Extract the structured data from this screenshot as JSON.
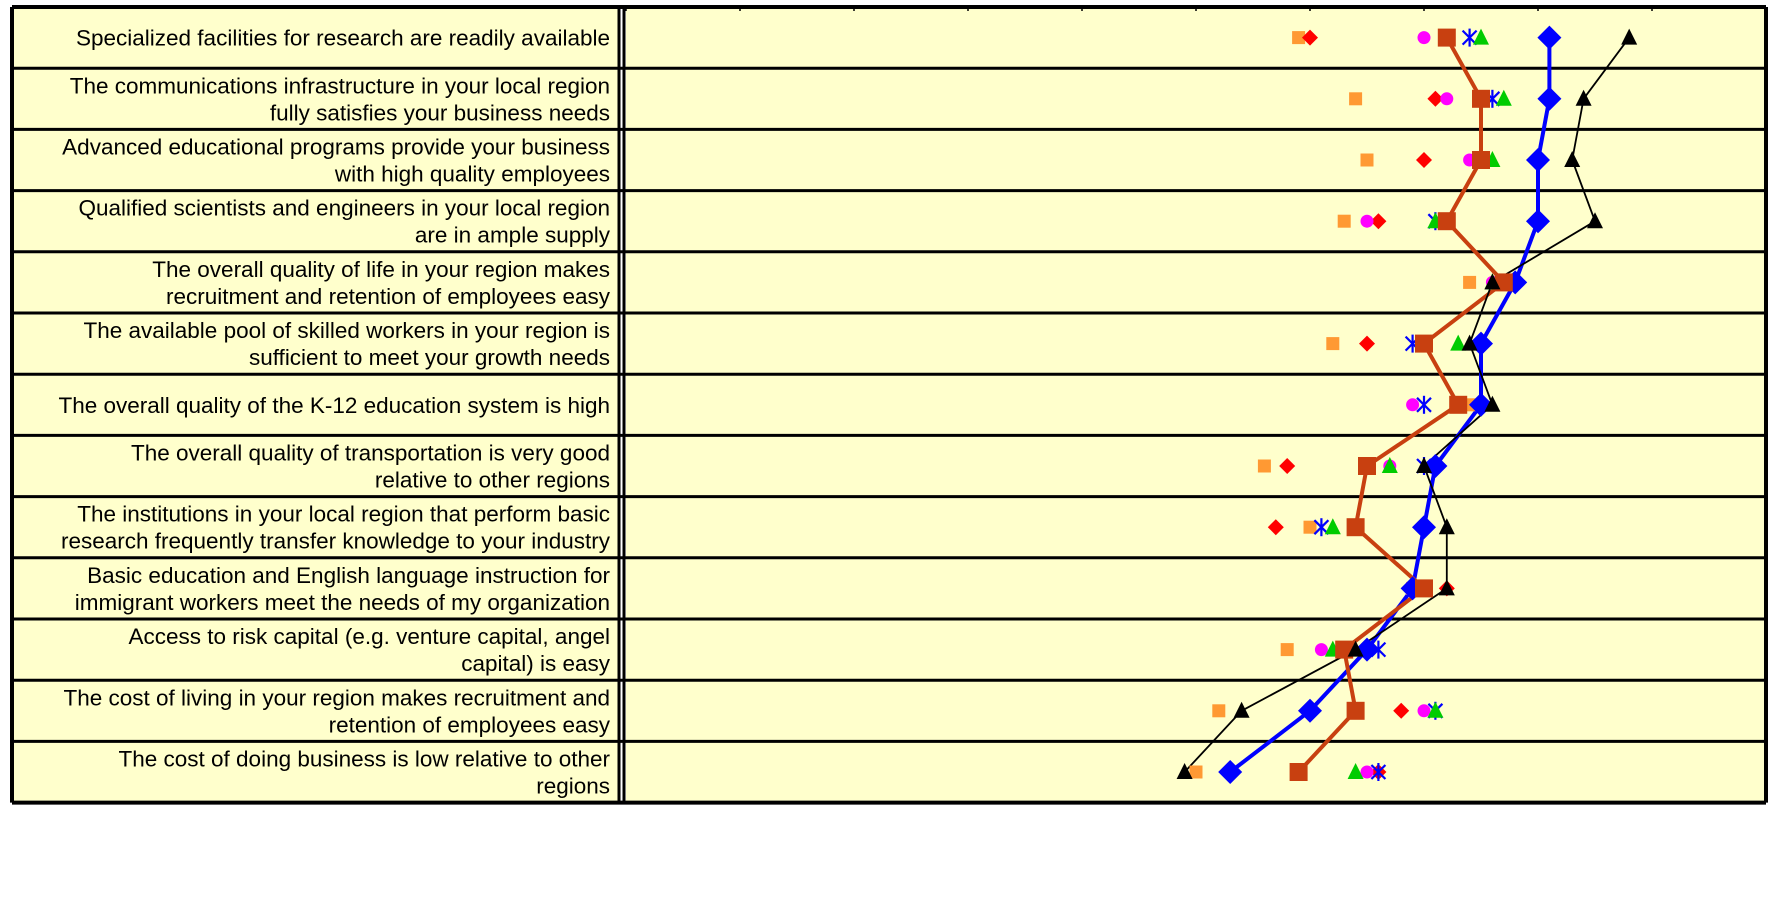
{
  "chart_data": {
    "type": "scatter",
    "title": "",
    "xlabel": "",
    "ylabel": "",
    "xlim": [
      1.0,
      6.0
    ],
    "categories": [
      "Specialized facilities for research are readily available",
      "The communications infrastructure in your local region fully satisfies your business needs",
      "Advanced educational programs provide your business with high quality employees",
      "Qualified scientists and engineers in your local region are in ample supply",
      "The overall quality of life in your region makes recruitment and retention of employees easy",
      "The available pool of skilled workers in your region is sufficient to meet your growth needs",
      "The overall quality of the K-12 education system is high",
      "The overall quality of transportation is very good relative to other regions",
      "The institutions in your local region that perform basic research frequently transfer knowledge to your industry",
      "Basic education and English language instruction for immigrant workers meet the needs of my organization",
      "Access to risk capital (e.g. venture capital, angel capital) is easy",
      "The cost of living in your region makes recruitment and retention of employees easy",
      "The cost of doing business is low relative to other regions"
    ],
    "category_lines": [
      [
        "Specialized facilities for research are readily available"
      ],
      [
        "The communications infrastructure in your local region",
        "fully satisfies your business needs"
      ],
      [
        "Advanced educational programs provide your business",
        "with high quality employees"
      ],
      [
        "Qualified scientists and engineers in your local region",
        "are in ample supply"
      ],
      [
        "The overall quality of life in your region makes",
        "recruitment and retention of employees easy"
      ],
      [
        "The available pool of skilled workers in your region is",
        "sufficient to meet your growth needs"
      ],
      [
        "The overall quality of the K-12 education system is high"
      ],
      [
        "The overall quality of transportation is very good",
        "relative to other regions"
      ],
      [
        "The institutions in your local region that perform basic",
        "research frequently transfer knowledge to your industry"
      ],
      [
        "Basic education and English language instruction for",
        "immigrant workers meet the needs of my organization"
      ],
      [
        "Access to risk capital (e.g. venture capital, angel",
        "capital) is easy"
      ],
      [
        "The cost of living in your region makes recruitment and",
        "retention of employees easy"
      ],
      [
        "The cost of doing business is low relative to other",
        "regions"
      ]
    ],
    "series": [
      {
        "marker": "diamond",
        "color": "#0000ff",
        "line": true,
        "values": [
          5.05,
          5.05,
          5.0,
          5.0,
          4.9,
          4.75,
          4.75,
          4.55,
          4.5,
          4.45,
          4.25,
          4.0,
          3.65
        ]
      },
      {
        "marker": "square",
        "color": "#c84010",
        "line": true,
        "values": [
          4.6,
          4.75,
          4.75,
          4.6,
          4.85,
          4.5,
          4.65,
          4.25,
          4.2,
          4.5,
          4.15,
          4.2,
          3.95
        ]
      },
      {
        "marker": "triangle",
        "color": "#000000",
        "line": true,
        "values": [
          5.4,
          5.2,
          5.15,
          5.25,
          4.8,
          4.7,
          4.8,
          4.5,
          4.6,
          4.6,
          4.2,
          3.7,
          3.45
        ]
      },
      {
        "marker": "square-small",
        "color": "#ff9933",
        "line": false,
        "values": [
          3.95,
          4.2,
          4.25,
          4.15,
          4.7,
          4.1,
          4.7,
          3.8,
          4.0,
          4.45,
          3.9,
          3.6,
          3.5
        ]
      },
      {
        "marker": "diamond-small",
        "color": "#ff0000",
        "line": false,
        "values": [
          4.0,
          4.55,
          4.5,
          4.3,
          4.9,
          4.25,
          null,
          3.9,
          3.85,
          4.6,
          null,
          4.4,
          4.3
        ]
      },
      {
        "marker": "circle",
        "color": "#ff00ff",
        "line": false,
        "values": [
          4.5,
          4.6,
          4.7,
          4.25,
          4.8,
          null,
          4.45,
          4.35,
          null,
          null,
          4.05,
          4.5,
          4.25
        ]
      },
      {
        "marker": "asterisk",
        "color": "#0000ff",
        "line": false,
        "values": [
          4.7,
          4.8,
          null,
          4.55,
          null,
          4.45,
          4.5,
          4.5,
          4.05,
          null,
          4.3,
          4.55,
          4.3
        ]
      },
      {
        "marker": "triangle-small",
        "color": "#00cc00",
        "line": false,
        "values": [
          4.75,
          4.85,
          4.8,
          4.55,
          4.8,
          4.65,
          null,
          4.35,
          4.1,
          null,
          4.1,
          4.55,
          4.2
        ]
      }
    ],
    "grid": true,
    "legend": "none",
    "colors": {
      "plot_background": "#ffffcc",
      "border": "#000000"
    }
  }
}
